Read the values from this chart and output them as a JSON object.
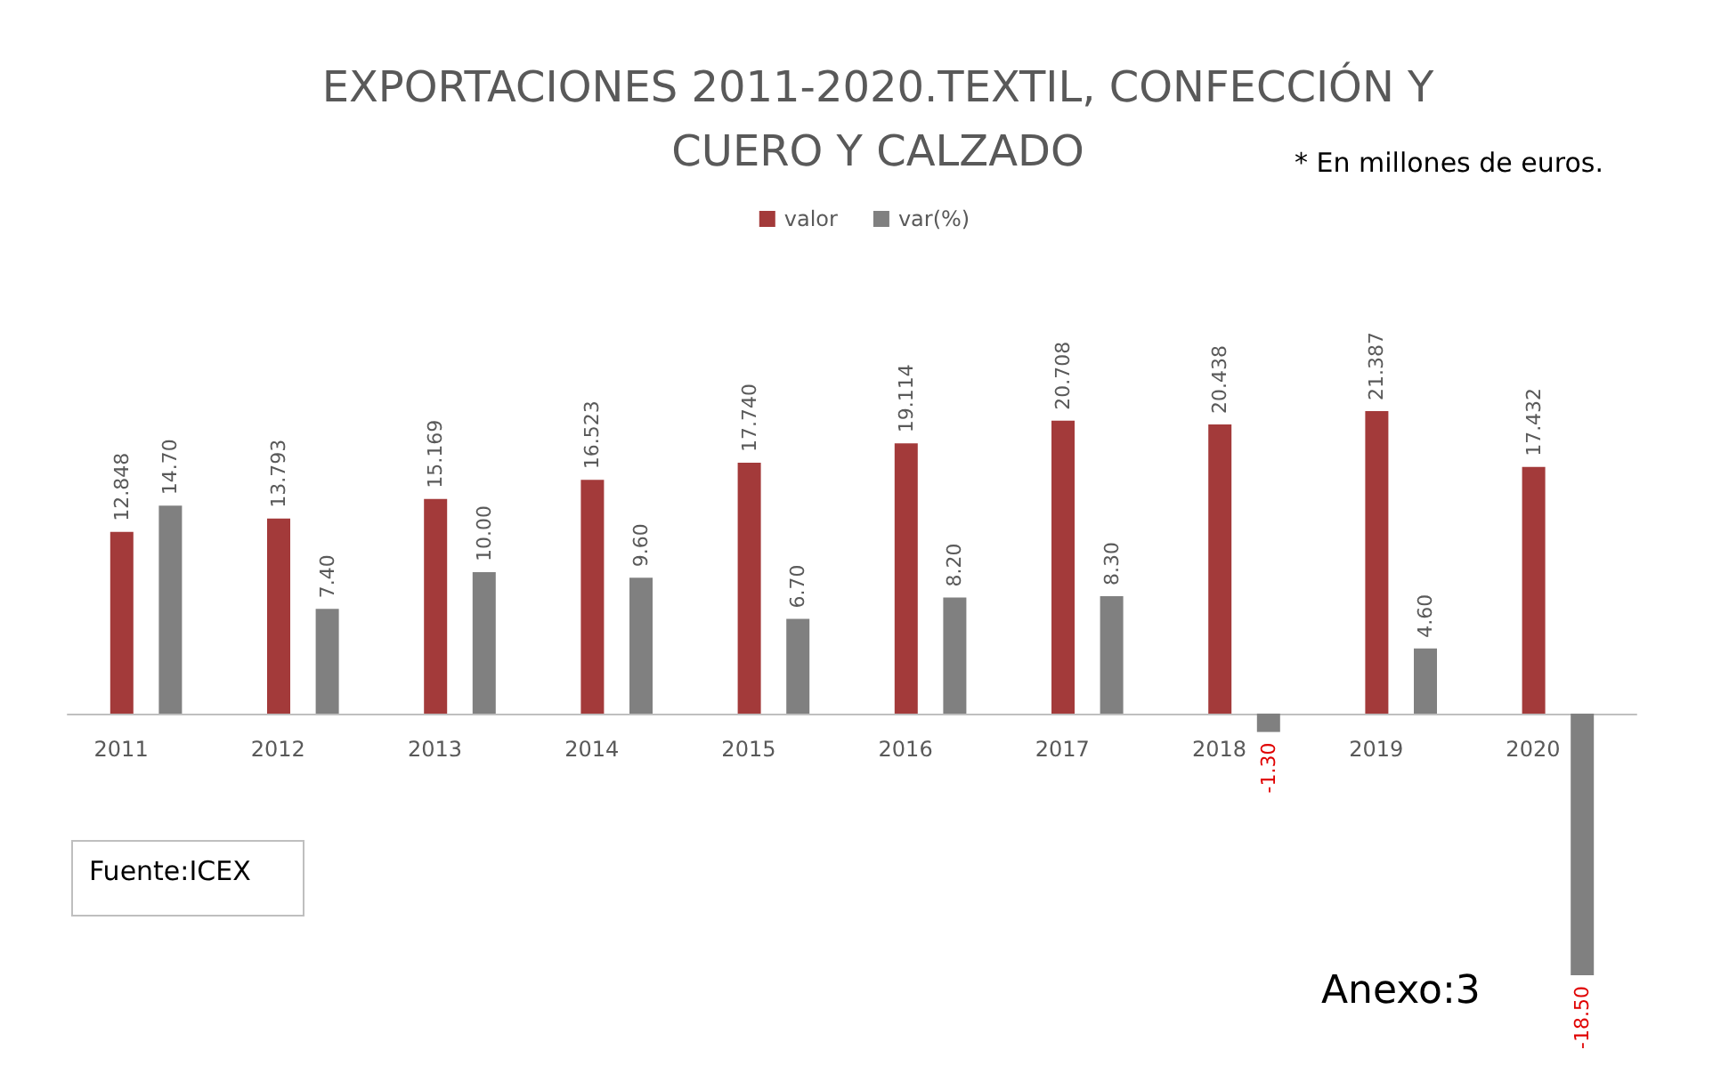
{
  "chart_data": {
    "type": "bar",
    "title": "EXPORTACIONES 2011-2020.TEXTIL, CONFECCIÓN Y\nCUERO Y CALZADO",
    "annotations": [
      "* En millones de euros.",
      "Fuente:ICEX",
      "Anexo:3"
    ],
    "categories": [
      "2011",
      "2012",
      "2013",
      "2014",
      "2015",
      "2016",
      "2017",
      "2018",
      "2019",
      "2020"
    ],
    "series": [
      {
        "name": "valor",
        "color": "#a33a3a",
        "values": [
          12.848,
          13.793,
          15.169,
          16.523,
          17.74,
          19.114,
          20.708,
          20.438,
          21.387,
          17.432
        ],
        "value_labels": [
          "12.848",
          "13.793",
          "15.169",
          "16.523",
          "17.740",
          "19.114",
          "20.708",
          "20.438",
          "21.387",
          "17.432"
        ]
      },
      {
        "name": "var(%)",
        "color": "#808080",
        "values": [
          14.7,
          7.4,
          10,
          9.6,
          6.7,
          8.2,
          8.3,
          -1.3,
          4.6,
          -18.5
        ],
        "value_labels": [
          "14.70",
          "7.40",
          "10.00",
          "9.60",
          "6.70",
          "8.20",
          "8.30",
          "-1.30",
          "4.60",
          "-18.50"
        ]
      }
    ],
    "legend": "top",
    "grid": false
  }
}
